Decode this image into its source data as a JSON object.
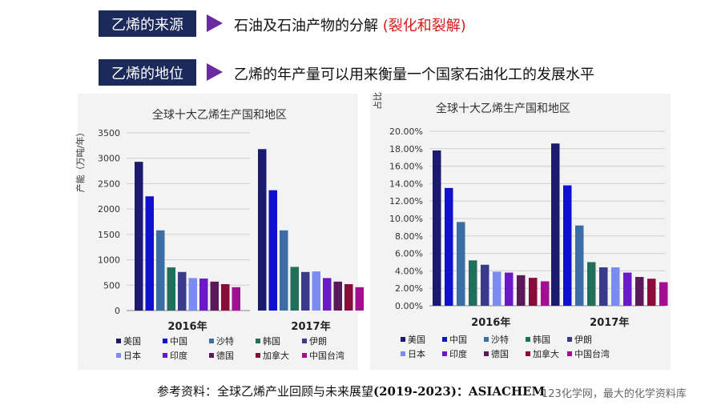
{
  "header1": {
    "label": "乙烯的来源",
    "text": "石油及石油产物的分解",
    "highlight": "(裂化和裂解)"
  },
  "header2": {
    "label": "乙烯的地位",
    "text": "乙烯的年产量可以用来衡量一个国家石油化工的发展水平"
  },
  "colors": {
    "header_bg": "#1b2a5a",
    "arrow": "#6a2aa0",
    "highlight": "#d61a1a"
  },
  "chart_data": [
    {
      "type": "bar",
      "title": "全球十大乙烯生产国和地区",
      "ylabel": "产能（万吨/年）",
      "xlabel": "",
      "ylim": [
        0,
        3500
      ],
      "yticks": [
        "0",
        "500",
        "1000",
        "1500",
        "2000",
        "2500",
        "3000",
        "3500"
      ],
      "categories": [
        "2016年",
        "2017年"
      ],
      "legend_position": "bottom",
      "series": [
        {
          "name": "美国",
          "color": "#1a1a6e",
          "values": [
            2930,
            3180
          ]
        },
        {
          "name": "中国",
          "color": "#1010d0",
          "values": [
            2250,
            2370
          ]
        },
        {
          "name": "沙特",
          "color": "#3a6ea5",
          "values": [
            1580,
            1580
          ]
        },
        {
          "name": "韩国",
          "color": "#1f6f5a",
          "values": [
            850,
            860
          ]
        },
        {
          "name": "伊朗",
          "color": "#3a3a8a",
          "values": [
            760,
            760
          ]
        },
        {
          "name": "日本",
          "color": "#7a8cf0",
          "values": [
            640,
            770
          ]
        },
        {
          "name": "印度",
          "color": "#6a18c8",
          "values": [
            630,
            640
          ]
        },
        {
          "name": "德国",
          "color": "#5a1a5a",
          "values": [
            570,
            570
          ]
        },
        {
          "name": "加拿大",
          "color": "#8a0a3a",
          "values": [
            520,
            520
          ]
        },
        {
          "name": "中国台湾",
          "color": "#a01090",
          "values": [
            460,
            460
          ]
        }
      ]
    },
    {
      "type": "bar",
      "title": "全球十大乙烯生产国和地区",
      "ylabel": "占比",
      "xlabel": "",
      "ylim": [
        0,
        20
      ],
      "yticks": [
        "0.00%",
        "2.00%",
        "4.00%",
        "6.00%",
        "8.00%",
        "10.00%",
        "12.00%",
        "14.00%",
        "16.00%",
        "18.00%",
        "20.00%"
      ],
      "categories": [
        "2016年",
        "2017年"
      ],
      "legend_position": "bottom",
      "series": [
        {
          "name": "美国",
          "color": "#1a1a6e",
          "values": [
            17.8,
            18.6
          ]
        },
        {
          "name": "中国",
          "color": "#1010d0",
          "values": [
            13.5,
            13.8
          ]
        },
        {
          "name": "沙特",
          "color": "#3a6ea5",
          "values": [
            9.6,
            9.2
          ]
        },
        {
          "name": "韩国",
          "color": "#1f6f5a",
          "values": [
            5.2,
            5.0
          ]
        },
        {
          "name": "伊朗",
          "color": "#3a3a8a",
          "values": [
            4.7,
            4.4
          ]
        },
        {
          "name": "日本",
          "color": "#7a8cf0",
          "values": [
            3.9,
            4.4
          ]
        },
        {
          "name": "印度",
          "color": "#6a18c8",
          "values": [
            3.8,
            3.8
          ]
        },
        {
          "name": "德国",
          "color": "#5a1a5a",
          "values": [
            3.5,
            3.3
          ]
        },
        {
          "name": "加拿大",
          "color": "#8a0a3a",
          "values": [
            3.2,
            3.1
          ]
        },
        {
          "name": "中国台湾",
          "color": "#a01090",
          "values": [
            2.8,
            2.7
          ]
        }
      ]
    }
  ],
  "footer": {
    "text": "参考资料：全球乙烯产业回顾与未来展望",
    "bold": "(2019-2023)：ASIACHEM"
  },
  "watermark": "123化学网，最大的化学资料库"
}
